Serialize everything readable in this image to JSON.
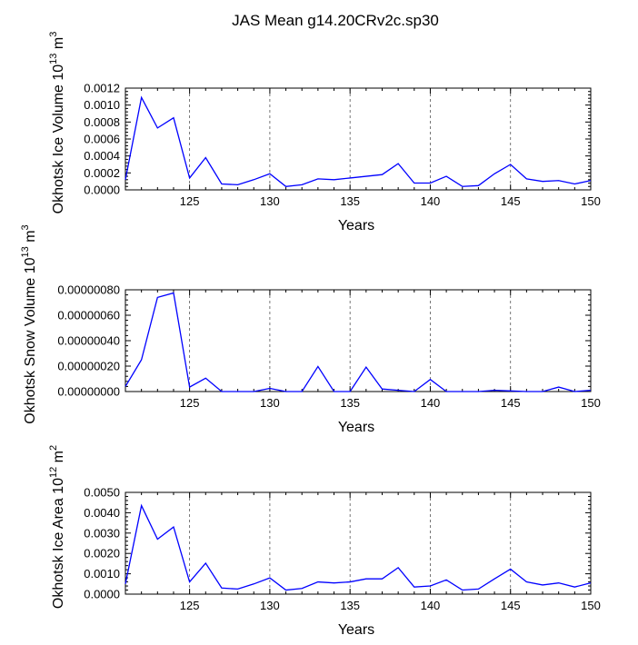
{
  "page_title": "JAS Mean g14.20CRv2c.sp30",
  "colors": {
    "series": "#0000ff",
    "axis": "#000000",
    "grid": "#555555"
  },
  "chart_data": [
    {
      "type": "line",
      "title": "JAS Mean g14.20CRv2c.sp30",
      "ylabel": "Okhotsk Ice Volume",
      "yunit_base": "10",
      "yunit_exp": "13",
      "yunit_suffix": "m",
      "yunit_power": "3",
      "xlabel": "Years",
      "xlim": [
        121,
        150
      ],
      "ylim": [
        0,
        0.0012
      ],
      "xticks": [
        125,
        130,
        135,
        140,
        145,
        150
      ],
      "yticks": [
        0.0,
        0.0002,
        0.0004,
        0.0006,
        0.0008,
        0.001,
        0.0012
      ],
      "ytick_labels": [
        "0.0000",
        "0.0002",
        "0.0004",
        "0.0006",
        "0.0008",
        "0.0010",
        "0.0012"
      ],
      "grid_x": [
        125,
        130,
        135,
        140,
        145
      ],
      "x": [
        121,
        122,
        123,
        124,
        125,
        126,
        127,
        128,
        129,
        130,
        131,
        132,
        133,
        134,
        135,
        136,
        137,
        138,
        139,
        140,
        141,
        142,
        143,
        144,
        145,
        146,
        147,
        148,
        149,
        150
      ],
      "values": [
        0.00012,
        0.00109,
        0.00073,
        0.00085,
        0.00014,
        0.00038,
        7e-05,
        6e-05,
        0.00012,
        0.00019,
        4e-05,
        6e-05,
        0.00013,
        0.00012,
        0.00014,
        0.00016,
        0.00018,
        0.00031,
        8e-05,
        8e-05,
        0.00016,
        4e-05,
        5e-05,
        0.00019,
        0.0003,
        0.00013,
        0.0001,
        0.00011,
        7e-05,
        0.00011
      ]
    },
    {
      "type": "line",
      "ylabel": "Okhotsk Snow Volume",
      "yunit_base": "10",
      "yunit_exp": "13",
      "yunit_suffix": "m",
      "yunit_power": "3",
      "xlabel": "Years",
      "xlim": [
        121,
        150
      ],
      "ylim": [
        0,
        8e-07
      ],
      "xticks": [
        125,
        130,
        135,
        140,
        145,
        150
      ],
      "yticks": [
        0.0,
        2e-07,
        4e-07,
        6e-07,
        8e-07
      ],
      "ytick_labels": [
        "0.00000000",
        "0.00000020",
        "0.00000040",
        "0.00000060",
        "0.00000080"
      ],
      "grid_x": [
        125,
        130,
        135,
        140,
        145
      ],
      "x": [
        121,
        122,
        123,
        124,
        125,
        126,
        127,
        128,
        129,
        130,
        131,
        132,
        133,
        134,
        135,
        136,
        137,
        138,
        139,
        140,
        141,
        142,
        143,
        144,
        145,
        146,
        147,
        148,
        149,
        150
      ],
      "values": [
        4e-08,
        2.5e-07,
        7.4e-07,
        7.75e-07,
        3.5e-08,
        1.05e-07,
        0,
        0,
        0,
        2.5e-08,
        0,
        0,
        1.97e-07,
        0,
        0,
        1.92e-07,
        2e-08,
        1e-08,
        0,
        9.5e-08,
        0,
        0,
        0,
        1e-08,
        5e-09,
        0,
        0,
        3.5e-08,
        0,
        1e-08
      ]
    },
    {
      "type": "line",
      "ylabel": "Okhotsk Ice Area",
      "yunit_base": "10",
      "yunit_exp": "12",
      "yunit_suffix": "m",
      "yunit_power": "2",
      "xlabel": "Years",
      "xlim": [
        121,
        150
      ],
      "ylim": [
        0,
        0.005
      ],
      "xticks": [
        125,
        130,
        135,
        140,
        145,
        150
      ],
      "yticks": [
        0.0,
        0.001,
        0.002,
        0.003,
        0.004,
        0.005
      ],
      "ytick_labels": [
        "0.0000",
        "0.0010",
        "0.0020",
        "0.0030",
        "0.0040",
        "0.0050"
      ],
      "grid_x": [
        125,
        130,
        135,
        140,
        145
      ],
      "x": [
        121,
        122,
        123,
        124,
        125,
        126,
        127,
        128,
        129,
        130,
        131,
        132,
        133,
        134,
        135,
        136,
        137,
        138,
        139,
        140,
        141,
        142,
        143,
        144,
        145,
        146,
        147,
        148,
        149,
        150
      ],
      "values": [
        0.0005,
        0.00435,
        0.0027,
        0.0033,
        0.0006,
        0.00152,
        0.0003,
        0.00025,
        0.0005,
        0.0008,
        0.0002,
        0.00028,
        0.0006,
        0.00055,
        0.0006,
        0.00075,
        0.00075,
        0.0013,
        0.00035,
        0.0004,
        0.0007,
        0.0002,
        0.00025,
        0.00075,
        0.00123,
        0.0006,
        0.00045,
        0.00055,
        0.00035,
        0.00055
      ]
    }
  ]
}
